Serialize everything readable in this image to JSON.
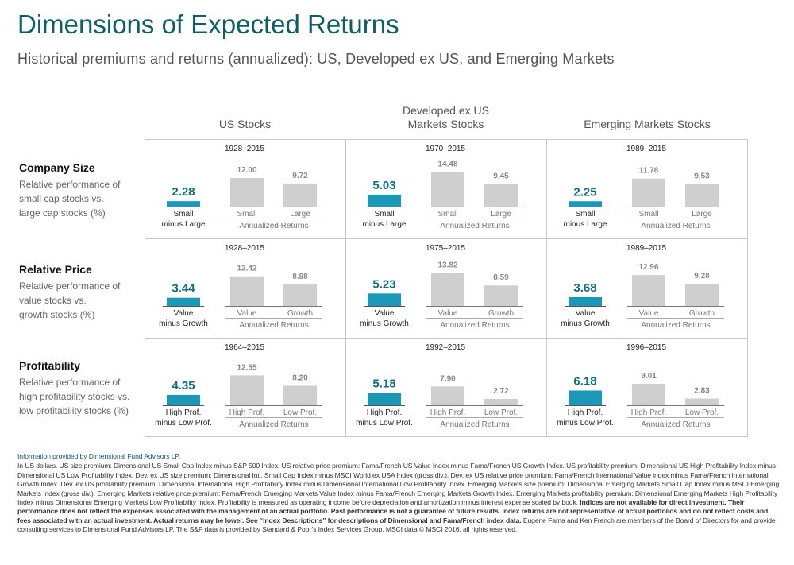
{
  "title": "Dimensions of Expected Returns",
  "subtitle": "Historical premiums  and returns (annualized):  US, Developed ex US, and Emerging  Markets",
  "columns": [
    {
      "label": "US Stocks"
    },
    {
      "label_line1": "Developed ex US",
      "label_line2": "Markets Stocks"
    },
    {
      "label": "Emerging Markets Stocks"
    }
  ],
  "rows": [
    {
      "title": "Company  Size",
      "desc1": "Relative performance of",
      "desc2": "small cap stocks vs.",
      "desc3": "large cap stocks (%)"
    },
    {
      "title": "Relative Price",
      "desc1": "Relative performance of",
      "desc2": "value stocks vs.",
      "desc3": "growth stocks (%)"
    },
    {
      "title": "Profitability",
      "desc1": "Relative performance of",
      "desc2": "high profitability stocks vs.",
      "desc3": "low profitability stocks (%)"
    }
  ],
  "colors": {
    "premium": "#1b98b8",
    "returns": "#cfcfcf",
    "title": "#0e5d6b",
    "value_premium": "#0e6e86",
    "value_return": "#888888"
  },
  "chart_data": {
    "type": "bar",
    "annualized_label": "Annualized Returns",
    "cells": [
      {
        "row": 0,
        "col": 0,
        "period": "1928–2015",
        "premium": 2.28,
        "premium_label1": "Small",
        "premium_label2": "minus Large",
        "bars": [
          {
            "label": "Small",
            "value": 12.0,
            "display": "12.00"
          },
          {
            "label": "Large",
            "value": 9.72,
            "display": "9.72"
          }
        ]
      },
      {
        "row": 0,
        "col": 1,
        "period": "1970–2015",
        "premium": 5.03,
        "premium_label1": "Small",
        "premium_label2": "minus Large",
        "bars": [
          {
            "label": "Small",
            "value": 14.48,
            "display": "14.48"
          },
          {
            "label": "Large",
            "value": 9.45,
            "display": "9.45"
          }
        ]
      },
      {
        "row": 0,
        "col": 2,
        "period": "1989–2015",
        "premium": 2.25,
        "premium_label1": "Small",
        "premium_label2": "minus Large",
        "bars": [
          {
            "label": "Small",
            "value": 11.78,
            "display": "11.78"
          },
          {
            "label": "Large",
            "value": 9.53,
            "display": "9.53"
          }
        ]
      },
      {
        "row": 1,
        "col": 0,
        "period": "1928–2015",
        "premium": 3.44,
        "premium_label1": "Value",
        "premium_label2": "minus Growth",
        "bars": [
          {
            "label": "Value",
            "value": 12.42,
            "display": "12.42"
          },
          {
            "label": "Growth",
            "value": 8.98,
            "display": "8.98"
          }
        ]
      },
      {
        "row": 1,
        "col": 1,
        "period": "1975–2015",
        "premium": 5.23,
        "premium_label1": "Value",
        "premium_label2": "minus Growth",
        "bars": [
          {
            "label": "Value",
            "value": 13.82,
            "display": "13.82"
          },
          {
            "label": "Growth",
            "value": 8.59,
            "display": "8.59"
          }
        ]
      },
      {
        "row": 1,
        "col": 2,
        "period": "1989–2015",
        "premium": 3.68,
        "premium_label1": "Value",
        "premium_label2": "minus Growth",
        "bars": [
          {
            "label": "Value",
            "value": 12.96,
            "display": "12.96"
          },
          {
            "label": "Growth",
            "value": 9.28,
            "display": "9.28"
          }
        ]
      },
      {
        "row": 2,
        "col": 0,
        "period": "1964–2015",
        "premium": 4.35,
        "premium_label1": "High Prof.",
        "premium_label2": "minus Low Prof.",
        "bars": [
          {
            "label": "High Prof.",
            "value": 12.55,
            "display": "12.55"
          },
          {
            "label": "Low Prof.",
            "value": 8.2,
            "display": "8.20"
          }
        ]
      },
      {
        "row": 2,
        "col": 1,
        "period": "1992–2015",
        "premium": 5.18,
        "premium_label1": "High Prof.",
        "premium_label2": "minus Low Prof.",
        "bars": [
          {
            "label": "High Prof.",
            "value": 7.9,
            "display": "7.90"
          },
          {
            "label": "Low Prof.",
            "value": 2.72,
            "display": "2.72"
          }
        ]
      },
      {
        "row": 2,
        "col": 2,
        "period": "1996–2015",
        "premium": 6.18,
        "premium_label1": "High Prof.",
        "premium_label2": "minus Low Prof.",
        "bars": [
          {
            "label": "High Prof.",
            "value": 9.01,
            "display": "9.01"
          },
          {
            "label": "Low Prof.",
            "value": 2.83,
            "display": "2.83"
          }
        ]
      }
    ]
  },
  "footnote": {
    "source": "Information provided by Dimensional Fund Advisors LP.",
    "p1": "In US dollars. US size premium: Dimensional US Small Cap Index minus S&P 500 Index. US relative price premium: Fama/French US Value Index minus Fama/French US Growth Index. US profitability premium: Dimensional US High Profitability Index minus Dimensional US Low Profitability Index. Dev. ex US size premium: Dimensional Intl. Small Cap Index minus MSCI World ex USA Index (gross div.). Dev. ex US relative price premium: Fama/French International Value index minus Fama/French International Growth Index. Dev. ex US profitability premium: Dimensional International High Profitability Index minus Dimensional International Low Profitability Index. Emerging Markets size premium: Dimensional Emerging Markets Small Cap Index minus MSCI Emerging Markets Index (gross div.). Emerging Markets relative price premium: Fama/French Emerging Markets Value Index minus Fama/French Emerging Markets Growth Index. Emerging Markets profitability premium: Dimensional Emerging Markets High Profitability Index minus Dimensional Emerging Markets Low Profitability Index. Profitability is measured as operating income before depreciation and amortization minus interest expense scaled by book.",
    "bold": "Indices are not available for direct investment. Their performance does not reflect the expenses associated with the management of an actual portfolio. Past performance is not a guarantee of future results. Index returns are not representative of actual portfolios and do not reflect costs and fees associated with an actual investment. Actual returns may be lower. See “Index Descriptions” for descriptions of Dimensional and Fama/French index data.",
    "p2": "Eugene Fama and Ken French are members of the Board of Directors for and provide consulting services to Dimensional Fund Advisors LP. The S&P data is provided by Standard & Poor’s Index Services Group. MSCI data © MSCI 2016, all rights reserved."
  }
}
